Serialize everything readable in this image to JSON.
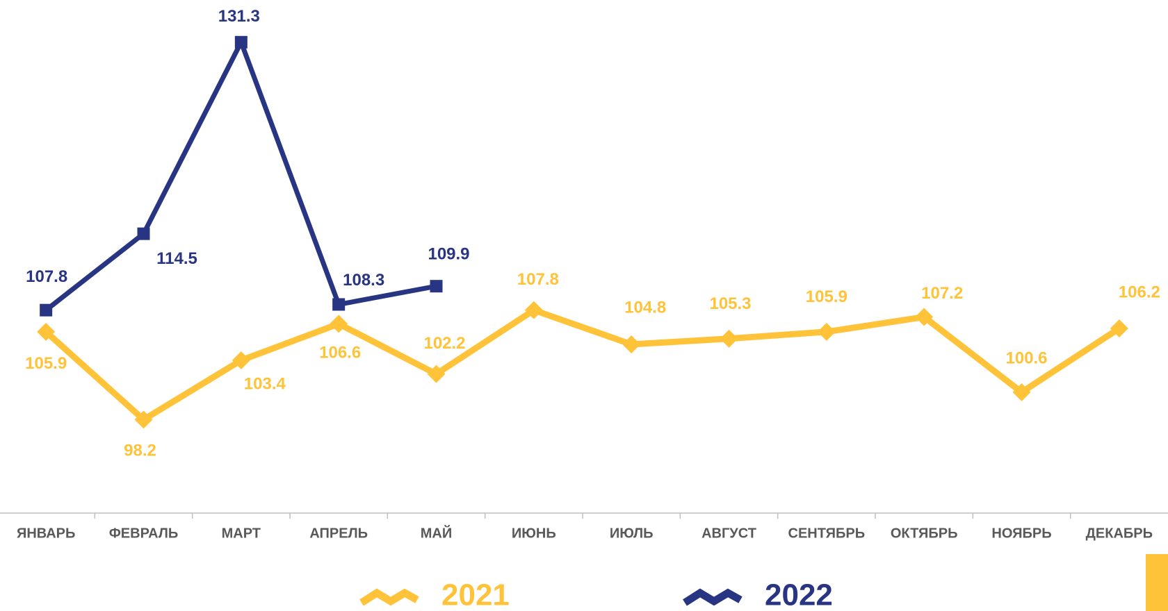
{
  "chart_data": {
    "type": "line",
    "categories": [
      "ЯНВАРЬ",
      "ФЕВРАЛЬ",
      "МАРТ",
      "АПРЕЛЬ",
      "МАЙ",
      "ИЮНЬ",
      "ИЮЛЬ",
      "АВГУСТ",
      "СЕНТЯБРЬ",
      "ОКТЯБРЬ",
      "НОЯБРЬ",
      "ДЕКАБРЬ"
    ],
    "series": [
      {
        "name": "2021",
        "color": "#FFC33A",
        "values": [
          105.9,
          98.2,
          103.4,
          106.6,
          102.2,
          107.8,
          104.8,
          105.3,
          105.9,
          107.2,
          100.6,
          106.2
        ]
      },
      {
        "name": "2022",
        "color": "#283583",
        "values": [
          107.8,
          114.5,
          131.3,
          108.3,
          109.9,
          null,
          null,
          null,
          null,
          null,
          null,
          null
        ]
      }
    ],
    "ylim": [
      90,
      135
    ]
  }
}
